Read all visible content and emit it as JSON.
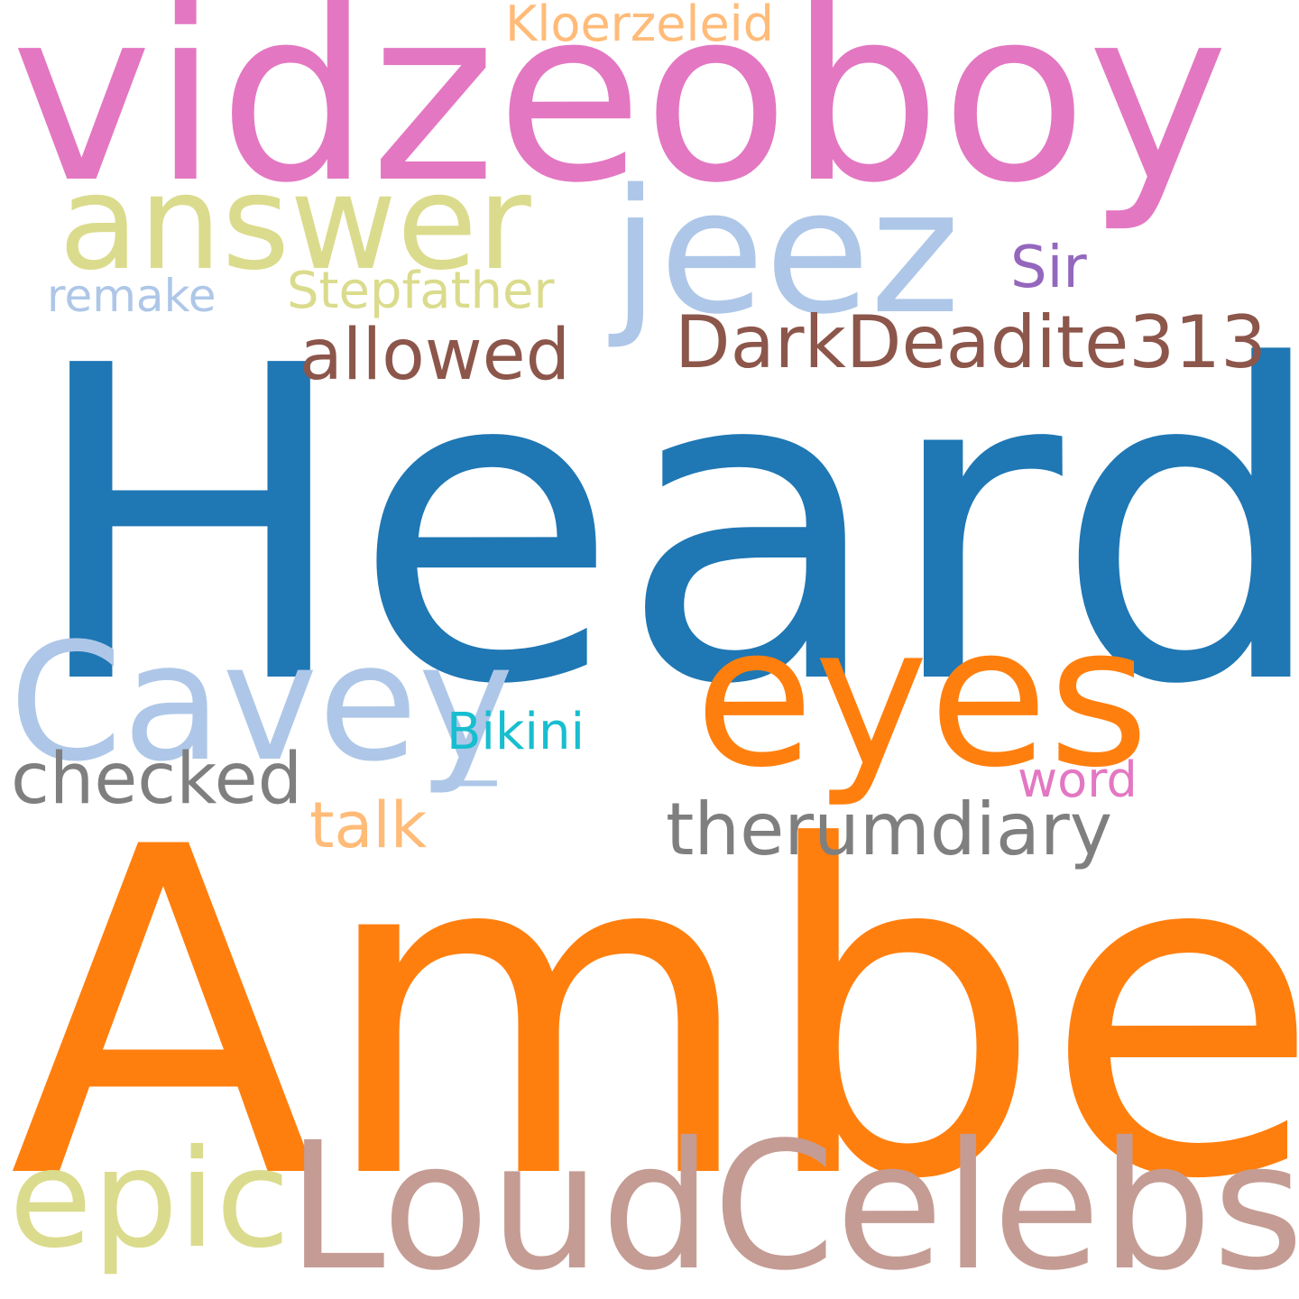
{
  "words": [
    {
      "id": "heard",
      "text": "Heard",
      "color": "#1f77b4"
    },
    {
      "id": "amber",
      "text": "Amber",
      "color": "#ff7f0e"
    },
    {
      "id": "vidzeoboy",
      "text": "vidzeoboy",
      "color": "#e377c2"
    },
    {
      "id": "loudcelebs",
      "text": "LoudCelebs",
      "color": "#c49c94"
    },
    {
      "id": "eyes",
      "text": "eyes",
      "color": "#ff7f0e"
    },
    {
      "id": "cavey",
      "text": "Cavey",
      "color": "#aec7e8"
    },
    {
      "id": "answer",
      "text": "answer",
      "color": "#dbdb8d"
    },
    {
      "id": "jeez",
      "text": "jeez",
      "color": "#aec7e8"
    },
    {
      "id": "epic",
      "text": "epic",
      "color": "#dbdb8d"
    },
    {
      "id": "darkdeadite313",
      "text": "DarkDeadite313",
      "color": "#8c564b"
    },
    {
      "id": "therumdiary",
      "text": "therumdiary",
      "color": "#7f7f7f"
    },
    {
      "id": "allowed",
      "text": "allowed",
      "color": "#8c564b"
    },
    {
      "id": "checked",
      "text": "checked",
      "color": "#7f7f7f"
    },
    {
      "id": "talk",
      "text": "talk",
      "color": "#ffbb78"
    },
    {
      "id": "stepfather",
      "text": "Stepfather",
      "color": "#dbdb8d"
    },
    {
      "id": "kloerzeleid",
      "text": "Kloerzeleid",
      "color": "#ffbb78"
    },
    {
      "id": "bikini",
      "text": "Bikini",
      "color": "#17becf"
    },
    {
      "id": "sir",
      "text": "Sir",
      "color": "#9467bd"
    },
    {
      "id": "remake",
      "text": "remake",
      "color": "#aec7e8"
    },
    {
      "id": "word",
      "text": "word",
      "color": "#e377c2"
    },
    {
      "id": "underscore",
      "text": "_",
      "color": "#aec7e8"
    }
  ]
}
